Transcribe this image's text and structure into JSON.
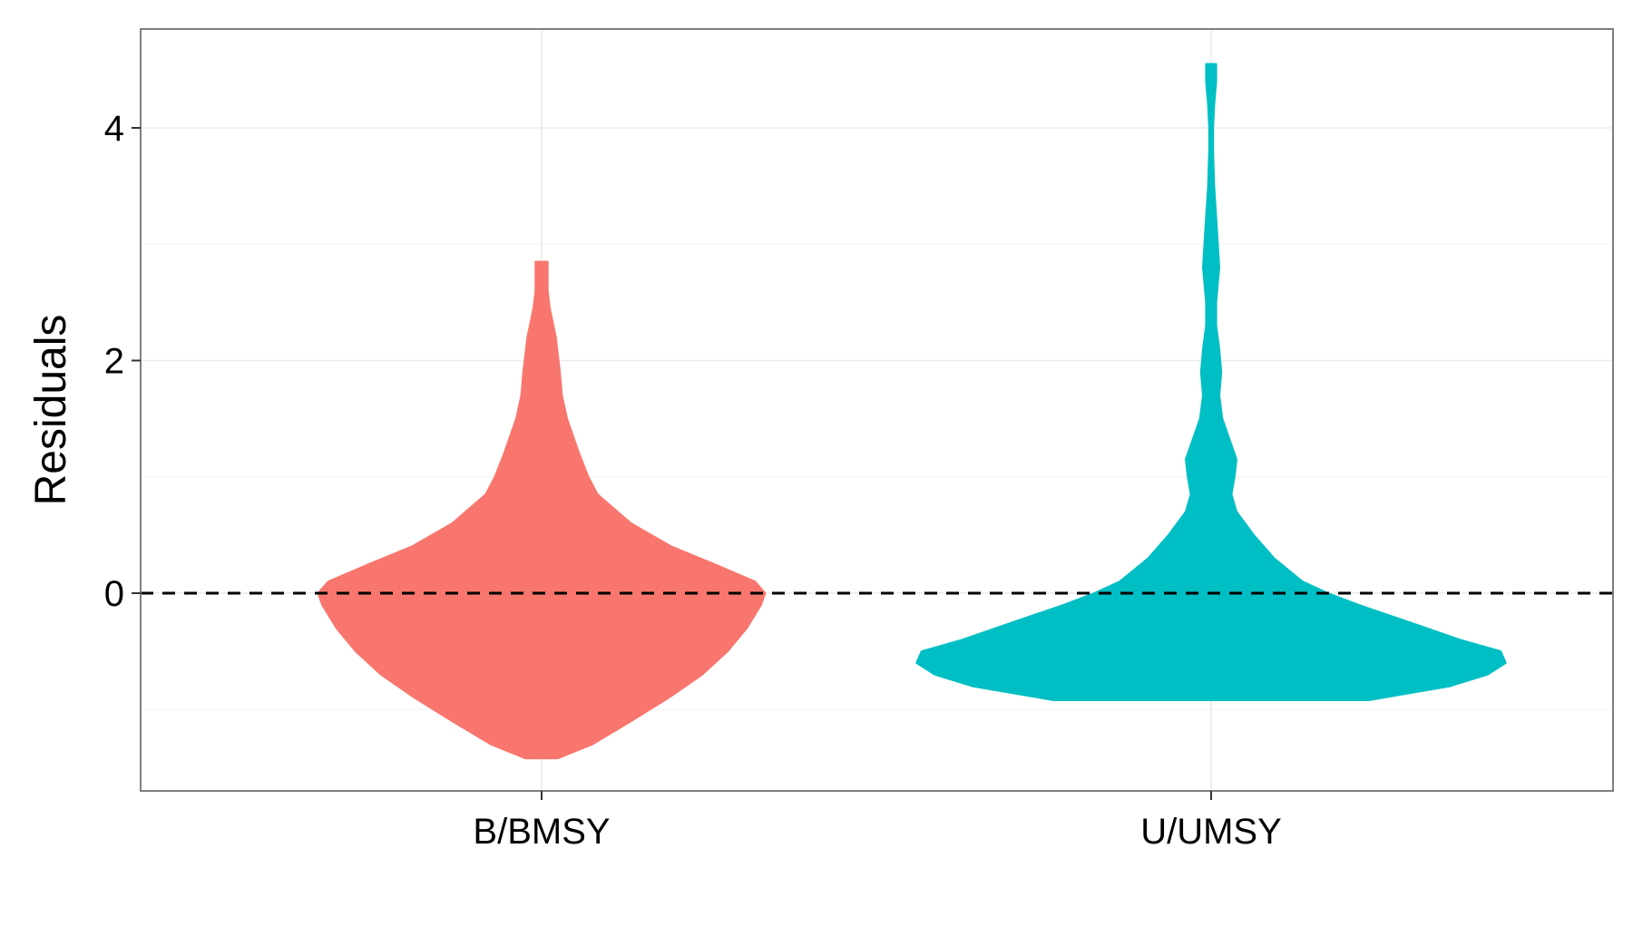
{
  "chart_data": {
    "type": "violin",
    "title": "",
    "xlabel": "",
    "ylabel": "Residuals",
    "ylim": [
      -1.7,
      4.85
    ],
    "yticks": [
      0,
      2,
      4
    ],
    "minor_yticks": [
      -1,
      1,
      3
    ],
    "categories": [
      "B/BMSY",
      "U/UMSY"
    ],
    "reference_line": {
      "y": 0,
      "style": "dashed"
    },
    "grid": true,
    "legend": "none",
    "series": [
      {
        "category": "B/BMSY",
        "color": "#F8766D",
        "density": [
          [
            -1.42,
            0.16
          ],
          [
            -1.3,
            0.5
          ],
          [
            -1.1,
            0.88
          ],
          [
            -0.9,
            1.25
          ],
          [
            -0.7,
            1.58
          ],
          [
            -0.5,
            1.83
          ],
          [
            -0.3,
            2.02
          ],
          [
            -0.1,
            2.16
          ],
          [
            0.0,
            2.2
          ],
          [
            0.1,
            2.1
          ],
          [
            0.25,
            1.7
          ],
          [
            0.4,
            1.28
          ],
          [
            0.6,
            0.88
          ],
          [
            0.85,
            0.55
          ],
          [
            1.0,
            0.46
          ],
          [
            1.2,
            0.37
          ],
          [
            1.5,
            0.25
          ],
          [
            1.7,
            0.2
          ],
          [
            1.9,
            0.18
          ],
          [
            2.2,
            0.14
          ],
          [
            2.45,
            0.08
          ],
          [
            2.6,
            0.06
          ],
          [
            2.85,
            0.06
          ]
        ]
      },
      {
        "category": "U/UMSY",
        "color": "#00BFC4",
        "density": [
          [
            -0.92,
            1.55
          ],
          [
            -0.8,
            2.35
          ],
          [
            -0.7,
            2.72
          ],
          [
            -0.6,
            2.9
          ],
          [
            -0.5,
            2.85
          ],
          [
            -0.4,
            2.45
          ],
          [
            -0.25,
            1.95
          ],
          [
            -0.1,
            1.45
          ],
          [
            0.0,
            1.15
          ],
          [
            0.1,
            0.9
          ],
          [
            0.3,
            0.62
          ],
          [
            0.5,
            0.42
          ],
          [
            0.7,
            0.25
          ],
          [
            0.85,
            0.2
          ],
          [
            1.0,
            0.23
          ],
          [
            1.15,
            0.25
          ],
          [
            1.3,
            0.19
          ],
          [
            1.5,
            0.11
          ],
          [
            1.7,
            0.08
          ],
          [
            1.9,
            0.1
          ],
          [
            2.1,
            0.08
          ],
          [
            2.3,
            0.05
          ],
          [
            2.5,
            0.05
          ],
          [
            2.8,
            0.08
          ],
          [
            3.1,
            0.06
          ],
          [
            3.5,
            0.03
          ],
          [
            3.8,
            0.02
          ],
          [
            4.0,
            0.02
          ],
          [
            4.2,
            0.03
          ],
          [
            4.4,
            0.05
          ],
          [
            4.55,
            0.05
          ]
        ]
      }
    ]
  }
}
